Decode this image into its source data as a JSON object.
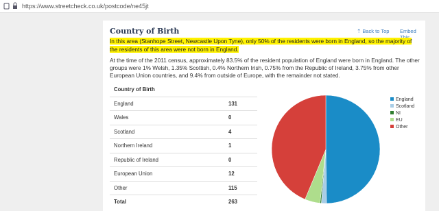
{
  "browser": {
    "url": "https://www.streetcheck.co.uk/postcode/ne45jt"
  },
  "section": {
    "title": "Country of Birth",
    "back_to_top": "Back to Top",
    "embed": "Embed This",
    "highlight": "In this area (Stanhope Street, Newcastle Upon Tyne), only 50% of the residents were born in England, so the majority of the residents of this area were not born in England.",
    "paragraph": "At the time of the 2011 census, approximately 83.5% of the resident population of England were born in England. The other groups were 1% Welsh, 1.35% Scottish, 0.4% Northern Irish, 0.75% from the Republic of Ireland, 3.75% from other European Union countries, and 9.4% from outside of Europe, with the remainder not stated."
  },
  "table": {
    "header": "Country of Birth",
    "rows": [
      [
        "England",
        131
      ],
      [
        "Wales",
        0
      ],
      [
        "Scotland",
        4
      ],
      [
        "Northern Ireland",
        1
      ],
      [
        "Republic of Ireland",
        0
      ],
      [
        "European Union",
        12
      ],
      [
        "Other",
        115
      ]
    ],
    "total": [
      "Total",
      263
    ]
  },
  "chart_data": {
    "type": "pie",
    "categories": [
      "England",
      "Scotland",
      "NI",
      "EU",
      "Other"
    ],
    "values": [
      131,
      4,
      1,
      12,
      115
    ],
    "colors": [
      "#1a8cc7",
      "#a9cde6",
      "#2f7d2f",
      "#aedd8c",
      "#d5403a"
    ]
  }
}
